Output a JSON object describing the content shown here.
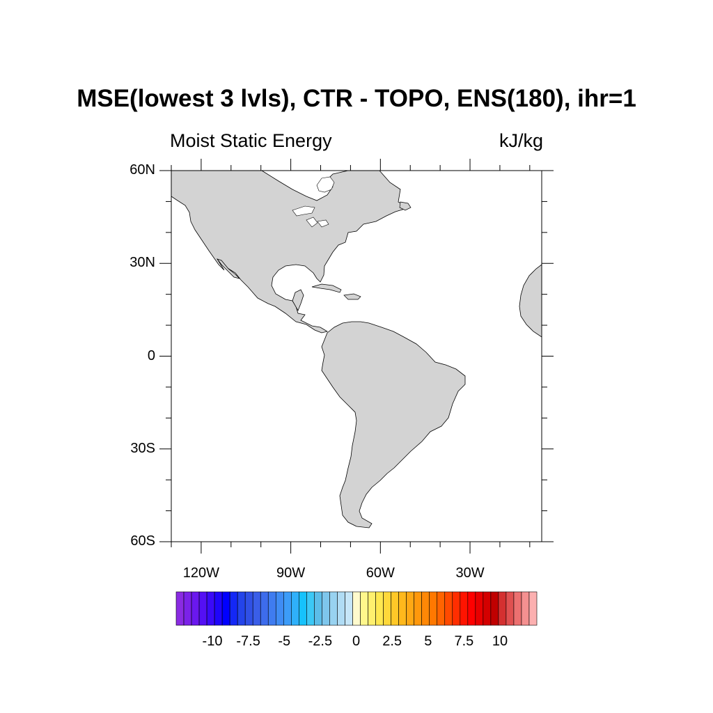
{
  "header": {
    "title": "MSE(lowest 3 lvls), CTR - TOPO, ENS(180), ihr=1",
    "left_string": "Moist Static Energy",
    "right_string": "kJ/kg"
  },
  "map": {
    "lon_range": [
      -130,
      -6
    ],
    "lat_range": [
      -60,
      60
    ],
    "lat_tick_labels": [
      {
        "lat": 60,
        "label": "60N"
      },
      {
        "lat": 30,
        "label": "30N"
      },
      {
        "lat": 0,
        "label": "0"
      },
      {
        "lat": -30,
        "label": "30S"
      },
      {
        "lat": -60,
        "label": "60S"
      }
    ],
    "lon_tick_labels": [
      {
        "lon": -120,
        "label": "120W"
      },
      {
        "lon": -90,
        "label": "90W"
      },
      {
        "lon": -60,
        "label": "60W"
      },
      {
        "lon": -30,
        "label": "30W"
      }
    ],
    "land_color": "#d3d3d3",
    "coast_color": "#000000"
  },
  "colorbar": {
    "colors": [
      "#8a2be2",
      "#7b22e8",
      "#6a18ee",
      "#5410f4",
      "#3a0af8",
      "#1f05fb",
      "#0000ff",
      "#1428f5",
      "#2444ea",
      "#3050e6",
      "#3a5ee8",
      "#3d6cec",
      "#3f7cf0",
      "#3f8cf4",
      "#3c9cf8",
      "#2fb0fa",
      "#16c2fc",
      "#3cc8f6",
      "#5cbde9",
      "#7ec6ec",
      "#98d2f0",
      "#b0dcf4",
      "#c6e6f8",
      "#fffacd",
      "#fff78c",
      "#fff06e",
      "#ffe850",
      "#ffd83a",
      "#ffc828",
      "#ffb81c",
      "#ffa814",
      "#ff980c",
      "#ff8806",
      "#ff7800",
      "#ff6400",
      "#ff4a00",
      "#ff2e00",
      "#ff1400",
      "#ff0000",
      "#e80000",
      "#d40000",
      "#c00000",
      "#d43030",
      "#e05050",
      "#ec7070",
      "#f49090",
      "#fcb0b0"
    ],
    "tick_labels": [
      "-10",
      "-7.5",
      "-5",
      "-2.5",
      "0",
      "2.5",
      "5",
      "7.5",
      "10"
    ]
  }
}
